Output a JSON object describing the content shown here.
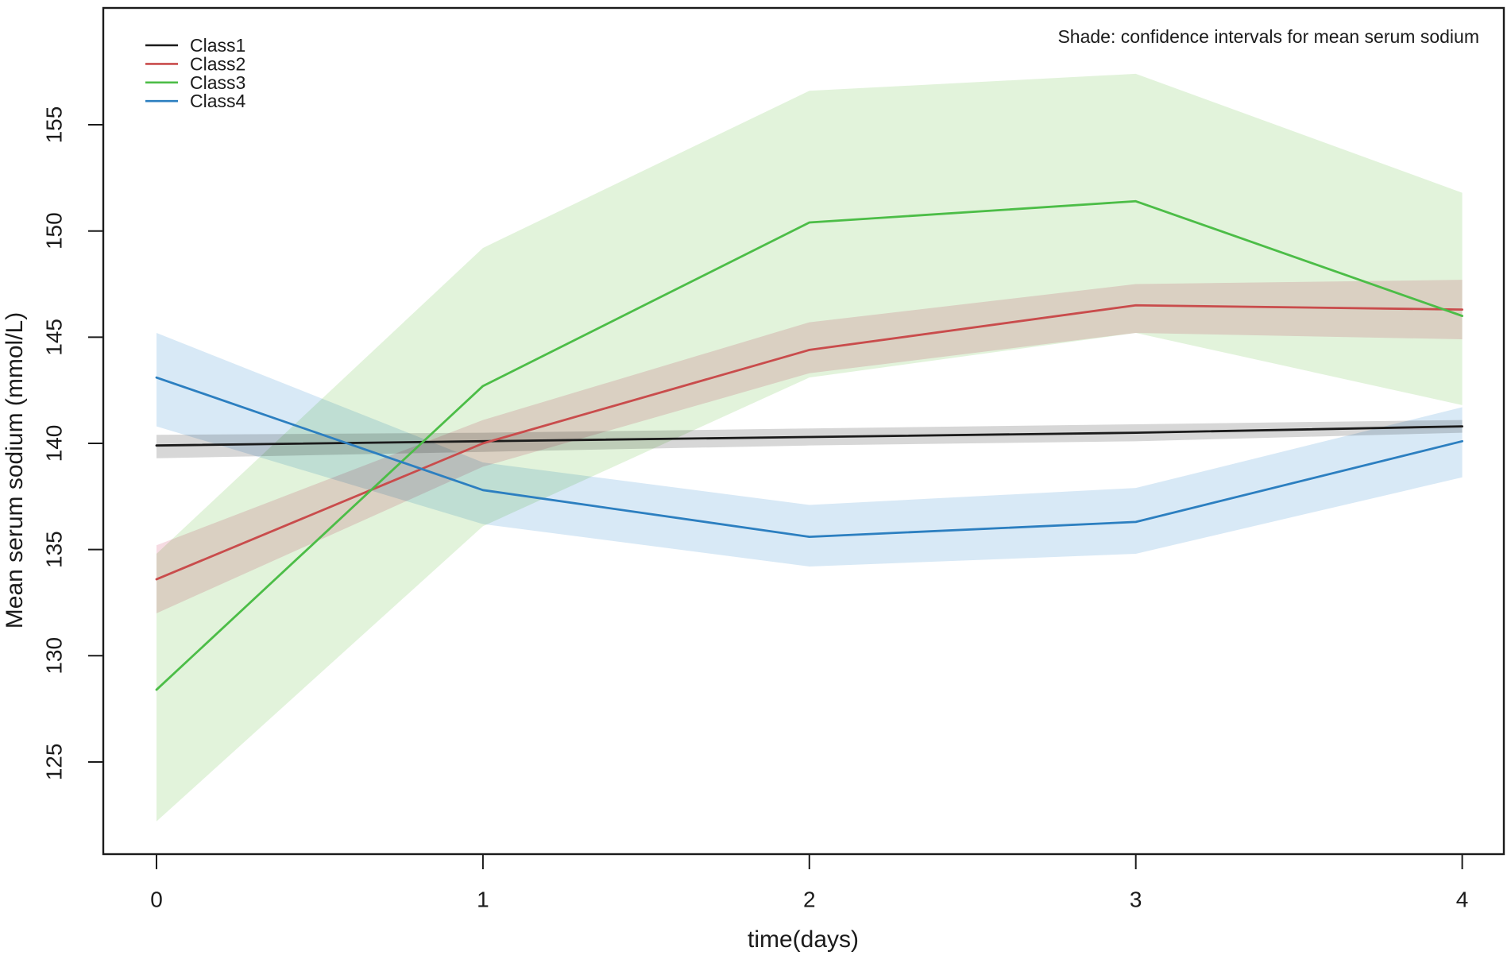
{
  "annotation": "Shade: confidence intervals for mean serum sodium",
  "axes": {
    "x_label": "time(days)",
    "y_label": "Mean serum sodium (mmol/L)",
    "x_ticks": [
      0,
      1,
      2,
      3,
      4
    ],
    "y_ticks": [
      125,
      130,
      135,
      140,
      145,
      150,
      155
    ]
  },
  "legend": {
    "position": "top-left",
    "labels": [
      "Class1",
      "Class2",
      "Class3",
      "Class4"
    ]
  },
  "chart_data": {
    "type": "line",
    "title": "",
    "xlabel": "time(days)",
    "ylabel": "Mean serum sodium (mmol/L)",
    "annotation": "Shade: confidence intervals for mean serum sodium",
    "x": [
      0,
      1,
      2,
      3,
      4
    ],
    "xlim": [
      -0.16,
      4.13
    ],
    "ylim": [
      120.7,
      160.5
    ],
    "grid": false,
    "legend_position": "top-left",
    "shade_meaning": "confidence intervals for mean serum sodium",
    "series": [
      {
        "name": "Class1",
        "color": "#1b1b1b",
        "band_color": "#d7d7d7",
        "values": [
          139.9,
          140.1,
          140.3,
          140.5,
          140.8
        ],
        "ci_lower": [
          139.3,
          139.6,
          139.9,
          140.1,
          140.5
        ],
        "ci_upper": [
          140.4,
          140.5,
          140.7,
          140.9,
          141.1
        ]
      },
      {
        "name": "Class2",
        "color": "#c94c4c",
        "band_color": "#f6dbe2",
        "values": [
          133.6,
          140.0,
          144.4,
          146.5,
          146.3
        ],
        "ci_lower": [
          132.0,
          138.9,
          143.3,
          145.2,
          144.9
        ],
        "ci_upper": [
          135.2,
          141.1,
          145.7,
          147.5,
          147.7
        ]
      },
      {
        "name": "Class3",
        "color": "#4cbd47",
        "band_color": "#e2f3db",
        "values": [
          128.4,
          142.7,
          150.4,
          151.4,
          146.0
        ],
        "ci_lower": [
          122.2,
          136.1,
          143.1,
          145.2,
          141.8
        ],
        "ci_upper": [
          134.8,
          149.2,
          156.6,
          157.4,
          151.8
        ]
      },
      {
        "name": "Class4",
        "color": "#2c7fc0",
        "band_color": "#d8e9f6",
        "values": [
          143.1,
          137.8,
          135.6,
          136.3,
          140.1
        ],
        "ci_lower": [
          140.8,
          136.2,
          134.2,
          134.8,
          138.4
        ],
        "ci_upper": [
          145.2,
          139.1,
          137.1,
          137.9,
          141.7
        ]
      }
    ]
  }
}
